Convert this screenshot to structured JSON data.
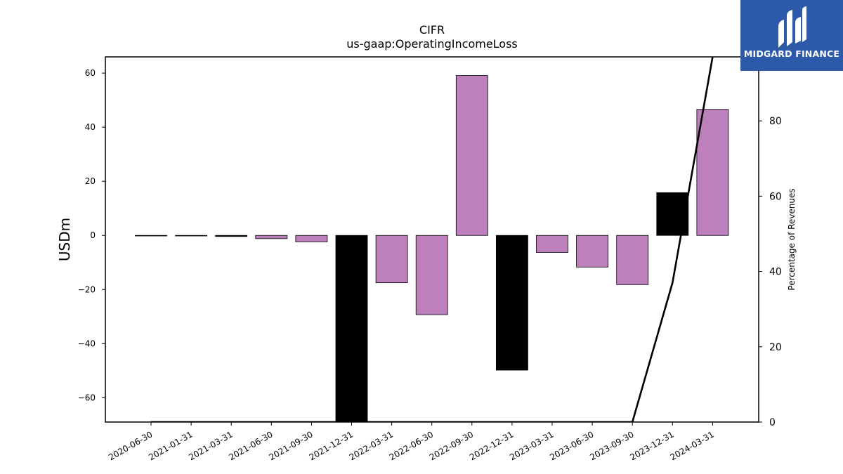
{
  "chart_data": {
    "type": "bar",
    "title": "CIFR",
    "subtitle": "us-gaap:OperatingIncomeLoss",
    "ylabel": "USDm",
    "y2label": "Percentage of Revenues",
    "categories": [
      "2020-06-30",
      "2021-01-31",
      "2021-03-31",
      "2021-06-30",
      "2021-09-30",
      "2021-12-31",
      "2022-03-31",
      "2022-06-30",
      "2022-09-30",
      "2022-12-31",
      "2023-03-31",
      "2023-06-30",
      "2023-09-30",
      "2023-12-31",
      "2024-03-31"
    ],
    "values": [
      -0.1,
      -0.2,
      -0.4,
      -1.2,
      -2.4,
      -69,
      -17.5,
      -29.3,
      59.1,
      -49.8,
      -6.3,
      -11.7,
      -18.2,
      15.8,
      46.6
    ],
    "bar_colors": [
      "#000000",
      "#000000",
      "#000000",
      "#bd80bd",
      "#bd80bd",
      "#000000",
      "#bd80bd",
      "#bd80bd",
      "#bd80bd",
      "#000000",
      "#bd80bd",
      "#bd80bd",
      "#bd80bd",
      "#000000",
      "#bd80bd"
    ],
    "ylim": [
      -69,
      66
    ],
    "yticks": [
      -60,
      -40,
      -20,
      0,
      20,
      40,
      60
    ],
    "yticklabels": [
      "−60",
      "−40",
      "−20",
      "0",
      "20",
      "40",
      "60"
    ],
    "y2lim": [
      0,
      97
    ],
    "y2ticks": [
      0,
      20,
      40,
      60,
      80
    ],
    "pct_line": {
      "x_index": [
        0,
        1,
        2,
        3,
        4,
        5,
        6,
        7,
        8,
        9,
        12,
        13,
        13.4,
        14
      ],
      "values": [
        0,
        0,
        0,
        0,
        0,
        0,
        0,
        0,
        0,
        0,
        0,
        37,
        61,
        97
      ]
    },
    "grid": false,
    "legend": "none"
  },
  "logo": {
    "text": "MIDGARD FINANCE"
  }
}
